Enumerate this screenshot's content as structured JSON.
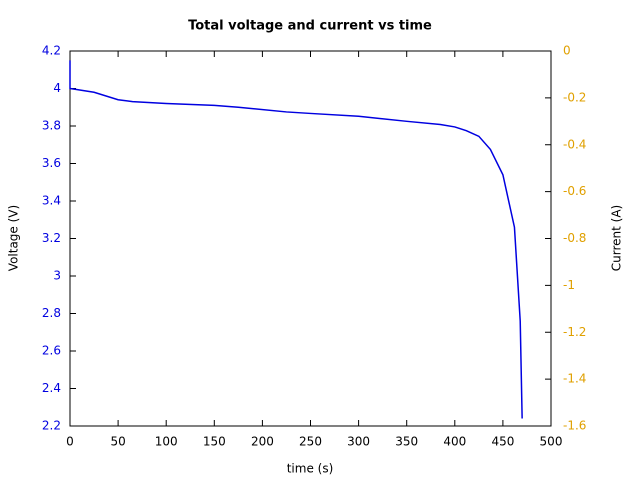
{
  "chart_data": {
    "type": "line",
    "title": "Total voltage and current vs time",
    "xlabel": "time (s)",
    "ylabel": "Voltage (V)",
    "y2label": "Current (A)",
    "x": [
      0,
      0,
      25,
      50,
      65,
      100,
      150,
      175,
      225,
      250,
      300,
      350,
      385,
      400,
      412,
      425,
      437,
      450,
      462,
      468,
      470
    ],
    "series": [
      {
        "name": "Voltage",
        "color": "#0000e0",
        "values": [
          4.15,
          4.0,
          3.98,
          3.94,
          3.93,
          3.92,
          3.91,
          3.9,
          3.875,
          3.867,
          3.852,
          3.825,
          3.808,
          3.795,
          3.775,
          3.745,
          3.675,
          3.54,
          3.26,
          2.76,
          2.24
        ]
      }
    ],
    "xlim": [
      0,
      500
    ],
    "xticks": [
      0,
      50,
      100,
      150,
      200,
      250,
      300,
      350,
      400,
      450,
      500
    ],
    "ylim": [
      2.2,
      4.2
    ],
    "yticks": [
      2.2,
      2.4,
      2.6,
      2.8,
      3,
      3.2,
      3.4,
      3.6,
      3.8,
      4,
      4.2
    ],
    "y2lim": [
      -1.6,
      0
    ],
    "y2ticks": [
      -1.6,
      -1.4,
      -1.2,
      -1,
      -0.8,
      -0.6,
      -0.4,
      -0.2,
      0
    ],
    "ycolor": "#0000e0",
    "y2color": "#e0a000"
  }
}
